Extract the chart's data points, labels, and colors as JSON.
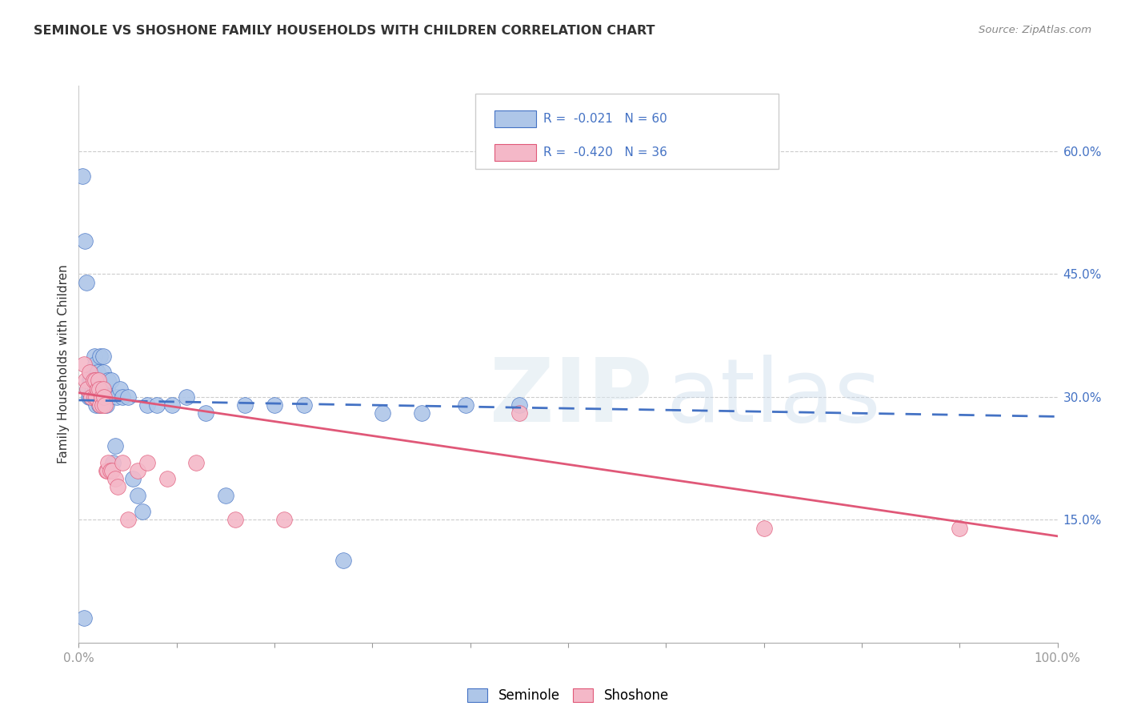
{
  "title": "SEMINOLE VS SHOSHONE FAMILY HOUSEHOLDS WITH CHILDREN CORRELATION CHART",
  "source": "Source: ZipAtlas.com",
  "ylabel": "Family Households with Children",
  "xlim": [
    0,
    1.0
  ],
  "ylim": [
    0,
    0.68
  ],
  "seminole_color": "#aec6e8",
  "shoshone_color": "#f4b8c8",
  "trendline_seminole_color": "#4472c4",
  "trendline_shoshone_color": "#e05878",
  "yticks_right": [
    0.15,
    0.3,
    0.45,
    0.6
  ],
  "ytick_right_labels": [
    "15.0%",
    "30.0%",
    "45.0%",
    "60.0%"
  ],
  "seminole_x": [
    0.004,
    0.006,
    0.008,
    0.009,
    0.01,
    0.011,
    0.012,
    0.013,
    0.014,
    0.015,
    0.015,
    0.016,
    0.016,
    0.017,
    0.017,
    0.018,
    0.018,
    0.019,
    0.019,
    0.02,
    0.02,
    0.021,
    0.021,
    0.022,
    0.022,
    0.023,
    0.024,
    0.025,
    0.025,
    0.026,
    0.027,
    0.028,
    0.029,
    0.03,
    0.031,
    0.033,
    0.035,
    0.037,
    0.039,
    0.042,
    0.045,
    0.05,
    0.055,
    0.06,
    0.065,
    0.07,
    0.08,
    0.095,
    0.11,
    0.13,
    0.15,
    0.17,
    0.2,
    0.23,
    0.27,
    0.31,
    0.35,
    0.395,
    0.45,
    0.005
  ],
  "seminole_y": [
    0.57,
    0.49,
    0.44,
    0.31,
    0.3,
    0.32,
    0.3,
    0.32,
    0.31,
    0.33,
    0.3,
    0.35,
    0.32,
    0.31,
    0.34,
    0.3,
    0.29,
    0.33,
    0.3,
    0.32,
    0.31,
    0.3,
    0.29,
    0.32,
    0.35,
    0.31,
    0.3,
    0.35,
    0.33,
    0.31,
    0.3,
    0.29,
    0.31,
    0.32,
    0.3,
    0.32,
    0.22,
    0.24,
    0.3,
    0.31,
    0.3,
    0.3,
    0.2,
    0.18,
    0.16,
    0.29,
    0.29,
    0.29,
    0.3,
    0.28,
    0.18,
    0.29,
    0.29,
    0.29,
    0.1,
    0.28,
    0.28,
    0.29,
    0.29,
    0.03
  ],
  "shoshone_x": [
    0.005,
    0.007,
    0.009,
    0.011,
    0.013,
    0.015,
    0.016,
    0.017,
    0.018,
    0.019,
    0.02,
    0.021,
    0.022,
    0.023,
    0.024,
    0.025,
    0.026,
    0.027,
    0.028,
    0.029,
    0.03,
    0.032,
    0.034,
    0.037,
    0.04,
    0.045,
    0.05,
    0.06,
    0.07,
    0.09,
    0.12,
    0.16,
    0.21,
    0.45,
    0.7,
    0.9
  ],
  "shoshone_y": [
    0.34,
    0.32,
    0.31,
    0.33,
    0.3,
    0.32,
    0.3,
    0.32,
    0.3,
    0.31,
    0.32,
    0.31,
    0.29,
    0.3,
    0.29,
    0.31,
    0.3,
    0.29,
    0.21,
    0.21,
    0.22,
    0.21,
    0.21,
    0.2,
    0.19,
    0.22,
    0.15,
    0.21,
    0.22,
    0.2,
    0.22,
    0.15,
    0.15,
    0.28,
    0.14,
    0.14
  ],
  "trendline_seminole_x0": 0.0,
  "trendline_seminole_x1": 1.0,
  "trendline_seminole_y0": 0.296,
  "trendline_seminole_y1": 0.276,
  "trendline_shoshone_x0": 0.0,
  "trendline_shoshone_x1": 1.0,
  "trendline_shoshone_y0": 0.305,
  "trendline_shoshone_y1": 0.13
}
